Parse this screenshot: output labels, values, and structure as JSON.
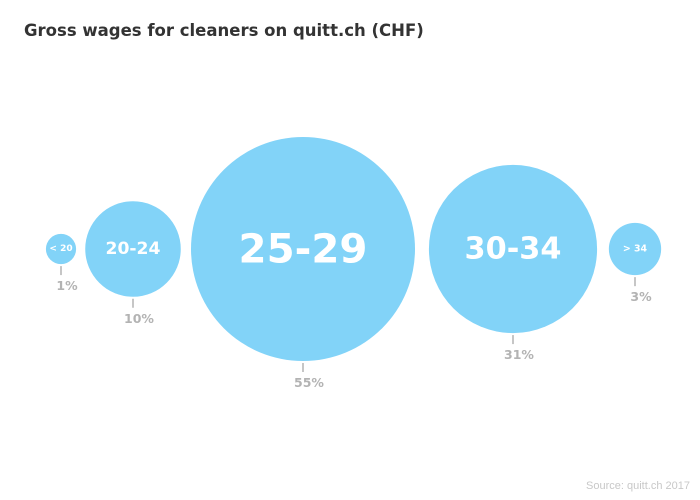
{
  "chart_data": {
    "type": "bubble",
    "title": "Gross wages for cleaners on quitt.ch (CHF)",
    "categories": [
      "< 20",
      "20-24",
      "25-29",
      "30-34",
      "> 34"
    ],
    "values": [
      1,
      10,
      55,
      31,
      3
    ],
    "value_labels": [
      "1%",
      "10%",
      "55%",
      "31%",
      "3%"
    ],
    "legend": "none",
    "grid": false
  },
  "source": "Source: quitt.ch 2017",
  "colors": {
    "bubble": "#82d3f8",
    "bubble_text": "#ffffff",
    "value_text": "#b3b3b3",
    "leader": "#b3b3b3",
    "title": "#333333",
    "source": "#c8c8c8"
  }
}
